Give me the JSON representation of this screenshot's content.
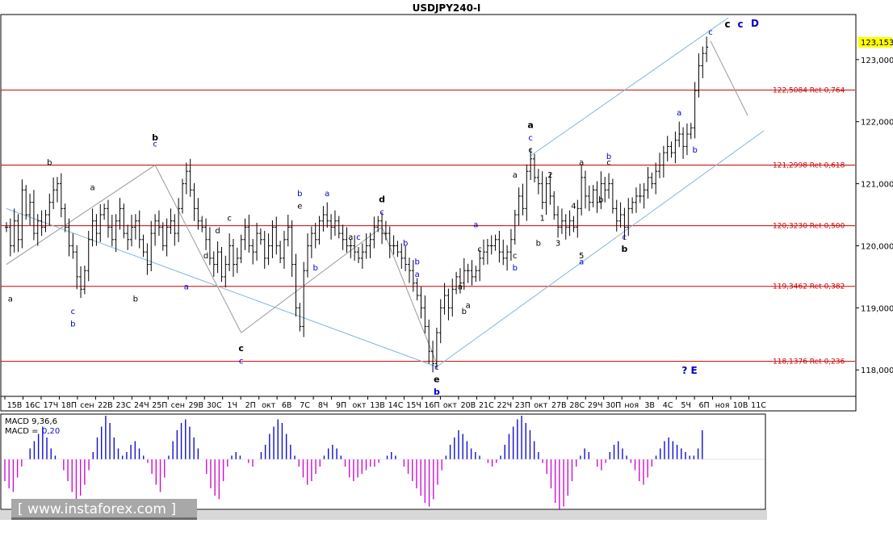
{
  "window": {
    "title": "USDJPY240-I"
  },
  "chart_data": {
    "type": "candlestick",
    "symbol": "USDJPY240-I",
    "title": "USDJPY240-I",
    "ylim": [
      117.6,
      123.7
    ],
    "yticks": [
      "123,000",
      "122,000",
      "121,000",
      "120,000",
      "119,000",
      "118,000"
    ],
    "current_price": "123,153",
    "xticks": [
      "15В",
      "16С",
      "17Ч",
      "18П",
      "сен",
      "22В",
      "23С",
      "24Ч",
      "25П",
      "сен",
      "29В",
      "30С",
      "1Ч",
      "2П",
      "окт",
      "6В",
      "7С",
      "8Ч",
      "9П",
      "окт",
      "13В",
      "14С",
      "15Ч",
      "16П",
      "окт",
      "20В",
      "21С",
      "22Ч",
      "23П",
      "окт",
      "27В",
      "28С",
      "29Ч",
      "30П",
      "ноя",
      "3В",
      "4С",
      "5Ч",
      "6П",
      "ноя",
      "10В",
      "11С"
    ],
    "fib_levels": [
      {
        "value": 122.5084,
        "label": "122,5084 Ret 0,764"
      },
      {
        "value": 121.2998,
        "label": "121,2998 Ret 0,618"
      },
      {
        "value": 120.323,
        "label": "120,3230 Ret 0,500"
      },
      {
        "value": 119.3462,
        "label": "119,3462 Ret 0,382"
      },
      {
        "value": 118.1376,
        "label": "118,1376 Ret 0,236"
      }
    ],
    "price_path": [
      [
        0,
        120.3
      ],
      [
        1,
        120.0
      ],
      [
        2,
        120.4
      ],
      [
        3,
        120.1
      ],
      [
        4,
        120.9
      ],
      [
        5,
        120.5
      ],
      [
        6,
        120.7
      ],
      [
        7,
        120.2
      ],
      [
        8,
        120.4
      ],
      [
        9,
        120.3
      ],
      [
        10,
        120.5
      ],
      [
        11,
        120.7
      ],
      [
        12,
        120.9
      ],
      [
        13,
        121.0
      ],
      [
        14,
        120.6
      ],
      [
        15,
        120.3
      ],
      [
        16,
        120.0
      ],
      [
        17,
        119.9
      ],
      [
        18,
        119.5
      ],
      [
        19,
        119.3
      ],
      [
        20,
        119.6
      ],
      [
        21,
        120.1
      ],
      [
        22,
        120.4
      ],
      [
        23,
        120.2
      ],
      [
        24,
        120.5
      ],
      [
        25,
        120.6
      ],
      [
        26,
        120.3
      ],
      [
        27,
        120.1
      ],
      [
        28,
        120.4
      ],
      [
        29,
        120.6
      ],
      [
        30,
        120.2
      ],
      [
        31,
        120.1
      ],
      [
        32,
        120.3
      ],
      [
        33,
        120.4
      ],
      [
        34,
        120.1
      ],
      [
        35,
        119.9
      ],
      [
        36,
        119.7
      ],
      [
        37,
        120.2
      ],
      [
        38,
        120.4
      ],
      [
        39,
        120.3
      ],
      [
        40,
        120.0
      ],
      [
        41,
        120.3
      ],
      [
        42,
        120.4
      ],
      [
        43,
        120.2
      ],
      [
        44,
        120.6
      ],
      [
        45,
        121.0
      ],
      [
        46,
        121.2
      ],
      [
        47,
        120.9
      ],
      [
        48,
        120.6
      ],
      [
        49,
        120.4
      ],
      [
        50,
        120.3
      ],
      [
        51,
        120.1
      ],
      [
        52,
        119.8
      ],
      [
        53,
        119.7
      ],
      [
        54,
        119.9
      ],
      [
        55,
        119.5
      ],
      [
        56,
        119.7
      ],
      [
        57,
        120.0
      ],
      [
        58,
        119.7
      ],
      [
        59,
        119.8
      ],
      [
        60,
        120.1
      ],
      [
        61,
        120.3
      ],
      [
        62,
        120.0
      ],
      [
        63,
        119.9
      ],
      [
        64,
        120.2
      ],
      [
        65,
        120.1
      ],
      [
        66,
        119.8
      ],
      [
        67,
        120.0
      ],
      [
        68,
        120.3
      ],
      [
        69,
        120.0
      ],
      [
        70,
        119.8
      ],
      [
        71,
        120.1
      ],
      [
        72,
        120.3
      ],
      [
        73,
        119.7
      ],
      [
        74,
        119.0
      ],
      [
        75,
        118.7
      ],
      [
        76,
        119.6
      ],
      [
        77,
        120.0
      ],
      [
        78,
        120.2
      ],
      [
        79,
        120.1
      ],
      [
        80,
        120.4
      ],
      [
        81,
        120.5
      ],
      [
        82,
        120.4
      ],
      [
        83,
        120.3
      ],
      [
        84,
        120.4
      ],
      [
        85,
        120.2
      ],
      [
        86,
        120.1
      ],
      [
        87,
        120.0
      ],
      [
        88,
        120.0
      ],
      [
        89,
        119.9
      ],
      [
        90,
        119.8
      ],
      [
        91,
        119.9
      ],
      [
        92,
        120.0
      ],
      [
        93,
        120.1
      ],
      [
        94,
        120.3
      ],
      [
        95,
        120.4
      ],
      [
        96,
        120.2
      ],
      [
        97,
        120.2
      ],
      [
        98,
        120.0
      ],
      [
        99,
        120.0
      ],
      [
        100,
        119.9
      ],
      [
        101,
        119.8
      ],
      [
        102,
        119.7
      ],
      [
        103,
        119.6
      ],
      [
        104,
        119.4
      ],
      [
        105,
        119.2
      ],
      [
        106,
        119.0
      ],
      [
        107,
        118.7
      ],
      [
        108,
        118.3
      ],
      [
        109,
        118.1
      ],
      [
        110,
        118.6
      ],
      [
        111,
        119.0
      ],
      [
        112,
        119.2
      ],
      [
        113,
        119.0
      ],
      [
        114,
        119.3
      ],
      [
        115,
        119.5
      ],
      [
        116,
        119.4
      ],
      [
        117,
        119.6
      ],
      [
        118,
        119.6
      ],
      [
        119,
        119.5
      ],
      [
        120,
        119.6
      ],
      [
        121,
        119.8
      ],
      [
        122,
        119.9
      ],
      [
        123,
        120.0
      ],
      [
        124,
        120.0
      ],
      [
        125,
        120.1
      ],
      [
        126,
        119.9
      ],
      [
        127,
        119.8
      ],
      [
        128,
        119.9
      ],
      [
        129,
        120.1
      ],
      [
        130,
        120.5
      ],
      [
        131,
        120.8
      ],
      [
        132,
        120.6
      ],
      [
        133,
        121.2
      ],
      [
        134,
        121.4
      ],
      [
        135,
        121.1
      ],
      [
        136,
        121.0
      ],
      [
        137,
        120.7
      ],
      [
        138,
        121.0
      ],
      [
        139,
        120.8
      ],
      [
        140,
        120.5
      ],
      [
        141,
        120.3
      ],
      [
        142,
        120.4
      ],
      [
        143,
        120.3
      ],
      [
        144,
        120.4
      ],
      [
        145,
        120.3
      ],
      [
        146,
        120.6
      ],
      [
        147,
        121.1
      ],
      [
        148,
        120.8
      ],
      [
        149,
        120.7
      ],
      [
        150,
        120.9
      ],
      [
        151,
        120.7
      ],
      [
        152,
        121.0
      ],
      [
        153,
        120.9
      ],
      [
        154,
        121.0
      ],
      [
        155,
        120.6
      ],
      [
        156,
        120.4
      ],
      [
        157,
        120.5
      ],
      [
        158,
        120.3
      ],
      [
        159,
        120.6
      ],
      [
        160,
        120.7
      ],
      [
        161,
        120.8
      ],
      [
        162,
        120.8
      ],
      [
        163,
        120.9
      ],
      [
        164,
        121.1
      ],
      [
        165,
        121.0
      ],
      [
        166,
        121.2
      ],
      [
        167,
        121.3
      ],
      [
        168,
        121.5
      ],
      [
        169,
        121.6
      ],
      [
        170,
        121.5
      ],
      [
        171,
        121.7
      ],
      [
        172,
        121.8
      ],
      [
        173,
        121.6
      ],
      [
        174,
        121.8
      ],
      [
        175,
        121.9
      ],
      [
        176,
        122.5
      ],
      [
        177,
        122.9
      ],
      [
        178,
        123.1
      ],
      [
        179,
        123.2
      ]
    ],
    "wave_labels": [
      {
        "i": 1,
        "p": 119.1,
        "text": "a",
        "color": "#000000",
        "bold": false
      },
      {
        "i": 11,
        "p": 121.3,
        "text": "b",
        "color": "#000000",
        "bold": false
      },
      {
        "i": 17,
        "p": 118.9,
        "text": "c",
        "color": "#0000cc",
        "bold": false
      },
      {
        "i": 17,
        "p": 118.7,
        "text": "b",
        "color": "#0000cc",
        "bold": false
      },
      {
        "i": 22,
        "p": 120.9,
        "text": "a",
        "color": "#000000",
        "bold": false
      },
      {
        "i": 33,
        "p": 119.1,
        "text": "b",
        "color": "#000000",
        "bold": false
      },
      {
        "i": 38,
        "p": 121.7,
        "text": "b",
        "color": "#000000",
        "bold": true
      },
      {
        "i": 38,
        "p": 121.6,
        "text": "c",
        "color": "#0000cc",
        "bold": false
      },
      {
        "i": 46,
        "p": 119.3,
        "text": "a",
        "color": "#0000cc",
        "bold": false
      },
      {
        "i": 57,
        "p": 120.4,
        "text": "c",
        "color": "#000000",
        "bold": false
      },
      {
        "i": 51,
        "p": 119.8,
        "text": "d",
        "color": "#000000",
        "bold": false
      },
      {
        "i": 54,
        "p": 120.2,
        "text": "d",
        "color": "#000000",
        "bold": false
      },
      {
        "i": 60,
        "p": 118.3,
        "text": "c",
        "color": "#000000",
        "bold": true
      },
      {
        "i": 60,
        "p": 118.1,
        "text": "c",
        "color": "#0000cc",
        "bold": false
      },
      {
        "i": 75,
        "p": 120.8,
        "text": "b",
        "color": "#0000cc",
        "bold": false
      },
      {
        "i": 75,
        "p": 120.6,
        "text": "e",
        "color": "#000000",
        "bold": false
      },
      {
        "i": 82,
        "p": 120.8,
        "text": "a",
        "color": "#0000cc",
        "bold": false
      },
      {
        "i": 79,
        "p": 119.6,
        "text": "b",
        "color": "#0000cc",
        "bold": false
      },
      {
        "i": 88,
        "p": 120.1,
        "text": "a",
        "color": "#000000",
        "bold": false
      },
      {
        "i": 90,
        "p": 120.1,
        "text": "c",
        "color": "#0000cc",
        "bold": false
      },
      {
        "i": 96,
        "p": 120.7,
        "text": "d",
        "color": "#000000",
        "bold": true
      },
      {
        "i": 96,
        "p": 120.5,
        "text": "c",
        "color": "#0000cc",
        "bold": false
      },
      {
        "i": 102,
        "p": 120.0,
        "text": "b",
        "color": "#0000cc",
        "bold": false
      },
      {
        "i": 105,
        "p": 119.7,
        "text": "b",
        "color": "#0000cc",
        "bold": false
      },
      {
        "i": 105,
        "p": 119.5,
        "text": "a",
        "color": "#0000cc",
        "bold": false
      },
      {
        "i": 110,
        "p": 118.0,
        "text": "c",
        "color": "#0000cc",
        "bold": false
      },
      {
        "i": 110,
        "p": 117.8,
        "text": "e",
        "color": "#000000",
        "bold": true
      },
      {
        "i": 110,
        "p": 117.6,
        "text": "b",
        "color": "#0000cc",
        "bold": true
      },
      {
        "i": 116,
        "p": 119.3,
        "text": "a",
        "color": "#000000",
        "bold": false
      },
      {
        "i": 118,
        "p": 119.0,
        "text": "a",
        "color": "#000000",
        "bold": false
      },
      {
        "i": 120,
        "p": 120.3,
        "text": "a",
        "color": "#0000cc",
        "bold": false
      },
      {
        "i": 121,
        "p": 119.9,
        "text": "c",
        "color": "#000000",
        "bold": false
      },
      {
        "i": 117,
        "p": 118.9,
        "text": "b",
        "color": "#000000",
        "bold": false
      },
      {
        "i": 130,
        "p": 119.8,
        "text": "c",
        "color": "#000000",
        "bold": false
      },
      {
        "i": 130,
        "p": 119.6,
        "text": "b",
        "color": "#0000cc",
        "bold": false
      },
      {
        "i": 134,
        "p": 121.9,
        "text": "a",
        "color": "#000000",
        "bold": true
      },
      {
        "i": 134,
        "p": 121.7,
        "text": "c",
        "color": "#0000cc",
        "bold": false
      },
      {
        "i": 134,
        "p": 121.5,
        "text": "c",
        "color": "#000000",
        "bold": false
      },
      {
        "i": 130,
        "p": 121.1,
        "text": "a",
        "color": "#000000",
        "bold": false
      },
      {
        "i": 136,
        "p": 120.0,
        "text": "b",
        "color": "#000000",
        "bold": false
      },
      {
        "i": 139,
        "p": 121.1,
        "text": "2",
        "color": "#000000",
        "bold": false
      },
      {
        "i": 137,
        "p": 120.4,
        "text": "1",
        "color": "#000000",
        "bold": false
      },
      {
        "i": 141,
        "p": 120.0,
        "text": "3",
        "color": "#000000",
        "bold": false
      },
      {
        "i": 145,
        "p": 120.6,
        "text": "4",
        "color": "#000000",
        "bold": false
      },
      {
        "i": 147,
        "p": 121.3,
        "text": "a",
        "color": "#000000",
        "bold": false
      },
      {
        "i": 147,
        "p": 119.8,
        "text": "5",
        "color": "#000000",
        "bold": false
      },
      {
        "i": 147,
        "p": 119.7,
        "text": "a",
        "color": "#0000cc",
        "bold": false
      },
      {
        "i": 154,
        "p": 121.4,
        "text": "b",
        "color": "#0000cc",
        "bold": false
      },
      {
        "i": 154,
        "p": 121.3,
        "text": "c",
        "color": "#000000",
        "bold": false
      },
      {
        "i": 152,
        "p": 120.7,
        "text": "b",
        "color": "#000000",
        "bold": false
      },
      {
        "i": 158,
        "p": 120.1,
        "text": "c",
        "color": "#0000cc",
        "bold": false
      },
      {
        "i": 158,
        "p": 119.9,
        "text": "b",
        "color": "#000000",
        "bold": true
      },
      {
        "i": 172,
        "p": 122.1,
        "text": "a",
        "color": "#0000cc",
        "bold": false
      },
      {
        "i": 176,
        "p": 121.5,
        "text": "b",
        "color": "#0000cc",
        "bold": false
      },
      {
        "i": 180,
        "p": 123.4,
        "text": "c",
        "color": "#0000cc",
        "bold": false
      }
    ],
    "corner_labels": [
      {
        "text": "c",
        "color": "#000000",
        "bold": true,
        "anchor": "top-right-1"
      },
      {
        "text": "c",
        "color": "#0000cc",
        "bold": true,
        "anchor": "top-right-2"
      },
      {
        "text": "D",
        "color": "#0000cc",
        "bold": true,
        "anchor": "top-right-3"
      },
      {
        "text": "? E",
        "color": "#0000cc",
        "bold": true,
        "anchor": "bottom-right"
      }
    ],
    "grid": false,
    "indicator": {
      "name": "MACD",
      "label_line1": "MACD 9,36,6",
      "label_line2_prefix": "MACD =",
      "label_line2_value": "0,20",
      "histogram": [
        -0.6,
        -0.8,
        -0.9,
        -0.5,
        -0.2,
        0.0,
        0.3,
        0.5,
        0.7,
        0.9,
        0.6,
        0.3,
        0.1,
        0.0,
        -0.3,
        -0.6,
        -0.9,
        -1.1,
        -1.0,
        -0.7,
        -0.3,
        0.2,
        0.6,
        0.9,
        1.2,
        1.0,
        0.6,
        0.3,
        0.1,
        0.2,
        0.4,
        0.5,
        0.3,
        0.1,
        -0.1,
        -0.4,
        -0.7,
        -0.9,
        -0.5,
        0.1,
        0.5,
        0.8,
        1.0,
        1.1,
        0.9,
        0.6,
        0.3,
        0.0,
        -0.4,
        -0.8,
        -1.0,
        -1.1,
        -0.6,
        -0.2,
        0.1,
        0.2,
        0.1,
        0.0,
        -0.1,
        -0.2,
        0.0,
        0.2,
        0.4,
        0.7,
        0.9,
        1.1,
        1.0,
        0.7,
        0.4,
        0.1,
        -0.2,
        -0.5,
        -0.7,
        -0.6,
        -0.4,
        -0.2,
        0.1,
        0.3,
        0.4,
        0.3,
        0.1,
        -0.2,
        -0.5,
        -0.6,
        -0.5,
        -0.4,
        -0.3,
        -0.2,
        -0.2,
        -0.1,
        0.0,
        0.1,
        0.2,
        0.1,
        0.0,
        -0.2,
        -0.4,
        -0.6,
        -0.8,
        -1.0,
        -1.2,
        -1.3,
        -1.1,
        -0.7,
        -0.3,
        0.1,
        0.4,
        0.6,
        0.8,
        0.7,
        0.5,
        0.3,
        0.2,
        0.1,
        0.0,
        -0.1,
        -0.2,
        -0.1,
        0.1,
        0.4,
        0.7,
        0.9,
        1.1,
        1.2,
        1.0,
        0.8,
        0.5,
        0.2,
        -0.1,
        -0.4,
        -0.8,
        -1.2,
        -1.4,
        -1.3,
        -1.0,
        -0.6,
        -0.2,
        0.1,
        0.3,
        0.2,
        0.0,
        -0.2,
        -0.3,
        -0.1,
        0.2,
        0.4,
        0.5,
        0.3,
        0.1,
        -0.1,
        -0.3,
        -0.6,
        -0.7,
        -0.5,
        -0.2,
        0.1,
        0.3,
        0.5,
        0.6,
        0.5,
        0.4,
        0.3,
        0.2,
        0.1,
        0.1,
        0.3,
        0.8
      ]
    }
  },
  "watermark": "[ www.instaforex.com ]",
  "colors": {
    "fib_line": "#cc0000",
    "fib_text": "#cc0000",
    "channel": "#7fb8d8",
    "candles": "#000000",
    "macd_pos": "#1010cc",
    "macd_neg": "#cc10cc",
    "price_box": "#ffff00"
  }
}
